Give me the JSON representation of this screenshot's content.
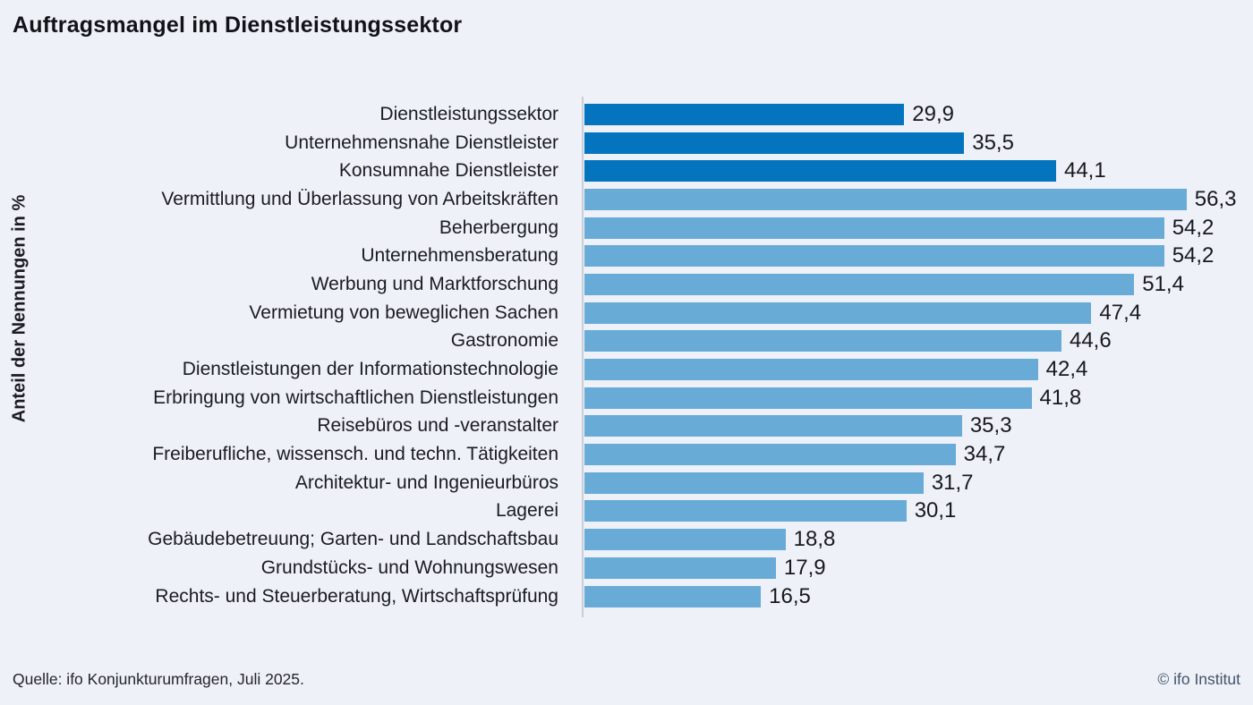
{
  "title": "Auftragsmangel im Dienstleistungssektor",
  "ylabel": "Anteil der Nennungen in %",
  "footer": {
    "source": "Quelle: ifo Konjunkturumfragen,  Juli 2025.",
    "copyright": "© ifo Institut"
  },
  "colors": {
    "background": "#eef1f7",
    "dark_bar": "#0374bd",
    "light_bar": "#68abd7",
    "axis_line": "#c9cdd6",
    "copyright_text": "#44546a"
  },
  "chart_data": {
    "type": "bar",
    "orientation": "horizontal",
    "title": "Auftragsmangel im Dienstleistungssektor",
    "xlabel": "",
    "ylabel": "Anteil der Nennungen in %",
    "xlim": [
      0,
      62
    ],
    "grid": false,
    "legend": null,
    "decimal_separator": ",",
    "highlight_dark_count": 3,
    "categories": [
      "Dienstleistungssektor",
      "Unternehmensnahe Dienstleister",
      "Konsumnahe Dienstleister",
      "Vermittlung und Überlassung von Arbeitskräften",
      "Beherbergung",
      "Unternehmensberatung",
      "Werbung und Marktforschung",
      "Vermietung von beweglichen Sachen",
      "Gastronomie",
      "Dienstleistungen der Informationstechnologie",
      "Erbringung von wirtschaftlichen Dienstleistungen",
      "Reisebüros und -veranstalter",
      "Freiberufliche, wissensch. und techn. Tätigkeiten",
      "Architektur- und Ingenieurbüros",
      "Lagerei",
      "Gebäudebetreuung; Garten- und Landschaftsbau",
      "Grundstücks- und Wohnungswesen",
      "Rechts- und Steuerberatung, Wirtschaftsprüfung"
    ],
    "values": [
      29.9,
      35.5,
      44.1,
      56.3,
      54.2,
      54.2,
      51.4,
      47.4,
      44.6,
      42.4,
      41.8,
      35.3,
      34.7,
      31.7,
      30.1,
      18.8,
      17.9,
      16.5
    ],
    "value_labels": [
      "29,9",
      "35,5",
      "44,1",
      "56,3",
      "54,2",
      "54,2",
      "51,4",
      "47,4",
      "44,6",
      "42,4",
      "41,8",
      "35,3",
      "34,7",
      "31,7",
      "30,1",
      "18,8",
      "17,9",
      "16,5"
    ]
  }
}
